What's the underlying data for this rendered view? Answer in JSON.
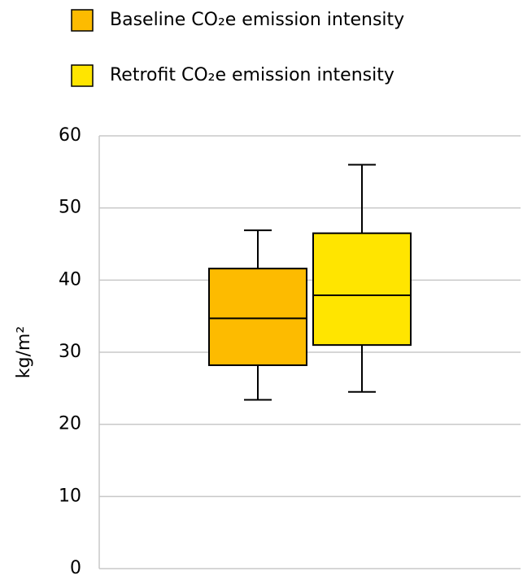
{
  "chart_data": {
    "type": "box",
    "y_label": "kg/m²",
    "ylim": [
      0,
      60
    ],
    "yticks": [
      0,
      10,
      20,
      30,
      40,
      50,
      60
    ],
    "grid": true,
    "series": [
      {
        "name": "Baseline CO₂e emission intensity",
        "color": "#fdbb00",
        "min": 23.4,
        "q1": 28.2,
        "median": 34.7,
        "q3": 41.6,
        "max": 46.9
      },
      {
        "name": "Retrofit CO₂e emission intensity",
        "color": "#ffe500",
        "min": 24.5,
        "q1": 31.0,
        "median": 37.9,
        "q3": 46.5,
        "max": 56.0
      }
    ]
  }
}
